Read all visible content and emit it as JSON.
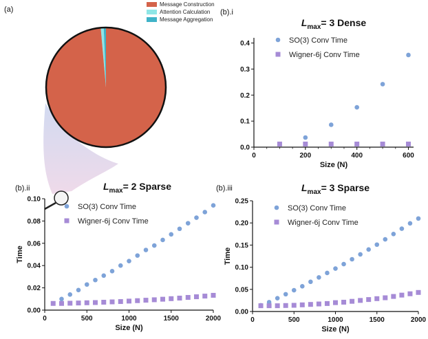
{
  "colors": {
    "so3": "#7ea3d8",
    "wigner": "#a68bd6",
    "message_construction": "#d4634a",
    "attention_calculation": "#8fe6e6",
    "message_aggregation": "#3fb3c8"
  },
  "chart_data": [
    {
      "id": "a",
      "type": "pie",
      "panel_label": "(a)",
      "slices": [
        {
          "name": "Message Construction",
          "value": 98.6,
          "color": "#d4634a"
        },
        {
          "name": "Attention Calculation",
          "value": 0.8,
          "color": "#8fe6e6"
        },
        {
          "name": "Message Aggregation",
          "value": 0.6,
          "color": "#3fb3c8"
        }
      ]
    },
    {
      "id": "bi",
      "type": "scatter",
      "panel_label": "(b).i",
      "title_main": "L",
      "title_sub": "max",
      "title_rest": "= 3 Dense",
      "xlabel": "Size (N)",
      "ylabel": "",
      "xlim": [
        0,
        620
      ],
      "ylim": [
        0,
        0.42
      ],
      "xticks": [
        0,
        200,
        400,
        600
      ],
      "yticks": [
        0.0,
        0.1,
        0.2,
        0.3,
        0.4
      ],
      "ytick_labels": [
        "0.0",
        "0.1",
        "0.2",
        "0.3",
        "0.4"
      ],
      "legend": [
        "SO(3) Conv Time",
        "Wigner-6j Conv Time"
      ],
      "series": [
        {
          "name": "SO(3) Conv Time",
          "marker": "circle",
          "x": [
            100,
            200,
            300,
            400,
            500,
            600
          ],
          "y": [
            0.012,
            0.037,
            0.086,
            0.153,
            0.242,
            0.354
          ]
        },
        {
          "name": "Wigner-6j Conv Time",
          "marker": "square",
          "x": [
            100,
            200,
            300,
            400,
            500,
            600
          ],
          "y": [
            0.012,
            0.012,
            0.012,
            0.012,
            0.012,
            0.012
          ]
        }
      ]
    },
    {
      "id": "bii",
      "type": "scatter",
      "panel_label": "(b).ii",
      "title_main": "L",
      "title_sub": "max",
      "title_rest": "= 2 Sparse",
      "xlabel": "Size (N)",
      "ylabel": "Time",
      "xlim": [
        0,
        2000
      ],
      "ylim": [
        0,
        0.1
      ],
      "xticks": [
        0,
        500,
        1000,
        1500,
        2000
      ],
      "yticks": [
        0.0,
        0.02,
        0.04,
        0.06,
        0.08,
        0.1
      ],
      "ytick_labels": [
        "0.00",
        "0.02",
        "0.04",
        "0.06",
        "0.08",
        "0.10"
      ],
      "legend": [
        "SO(3) Conv Time",
        "Wigner-6j Conv Time"
      ],
      "series": [
        {
          "name": "SO(3) Conv Time",
          "marker": "circle",
          "x": [
            100,
            200,
            300,
            400,
            500,
            600,
            700,
            800,
            900,
            1000,
            1100,
            1200,
            1300,
            1400,
            1500,
            1600,
            1700,
            1800,
            1900,
            2000
          ],
          "y": [
            0.006,
            0.01,
            0.014,
            0.018,
            0.023,
            0.027,
            0.031,
            0.035,
            0.04,
            0.044,
            0.049,
            0.054,
            0.058,
            0.063,
            0.068,
            0.073,
            0.078,
            0.083,
            0.088,
            0.094
          ]
        },
        {
          "name": "Wigner-6j Conv Time",
          "marker": "square",
          "x": [
            100,
            200,
            300,
            400,
            500,
            600,
            700,
            800,
            900,
            1000,
            1100,
            1200,
            1300,
            1400,
            1500,
            1600,
            1700,
            1800,
            1900,
            2000
          ],
          "y": [
            0.006,
            0.006,
            0.0062,
            0.0064,
            0.0066,
            0.0068,
            0.0071,
            0.0074,
            0.0077,
            0.0081,
            0.0085,
            0.0089,
            0.0093,
            0.0098,
            0.0103,
            0.0108,
            0.0114,
            0.012,
            0.0126,
            0.0133
          ]
        }
      ]
    },
    {
      "id": "biii",
      "type": "scatter",
      "panel_label": "(b).iii",
      "title_main": "L",
      "title_sub": "max",
      "title_rest": "= 3 Sparse",
      "xlabel": "Size (N)",
      "ylabel": "Time",
      "xlim": [
        0,
        2000
      ],
      "ylim": [
        0,
        0.25
      ],
      "xticks": [
        0,
        500,
        1000,
        1500,
        2000
      ],
      "yticks": [
        0.0,
        0.05,
        0.1,
        0.15,
        0.2,
        0.25
      ],
      "ytick_labels": [
        "0.00",
        "0.05",
        "0.10",
        "0.15",
        "0.20",
        "0.25"
      ],
      "legend": [
        "SO(3) Conv Time",
        "Wigner-6j Conv Time"
      ],
      "series": [
        {
          "name": "SO(3) Conv Time",
          "marker": "circle",
          "x": [
            100,
            200,
            300,
            400,
            500,
            600,
            700,
            800,
            900,
            1000,
            1100,
            1200,
            1300,
            1400,
            1500,
            1600,
            1700,
            1800,
            1900,
            2000
          ],
          "y": [
            0.014,
            0.021,
            0.03,
            0.039,
            0.048,
            0.057,
            0.067,
            0.077,
            0.087,
            0.097,
            0.107,
            0.118,
            0.129,
            0.14,
            0.151,
            0.163,
            0.175,
            0.187,
            0.199,
            0.21
          ]
        },
        {
          "name": "Wigner-6j Conv Time",
          "marker": "square",
          "x": [
            100,
            200,
            300,
            400,
            500,
            600,
            700,
            800,
            900,
            1000,
            1100,
            1200,
            1300,
            1400,
            1500,
            1600,
            1700,
            1800,
            1900,
            2000
          ],
          "y": [
            0.013,
            0.013,
            0.013,
            0.0135,
            0.014,
            0.015,
            0.016,
            0.017,
            0.018,
            0.02,
            0.021,
            0.023,
            0.025,
            0.027,
            0.029,
            0.031,
            0.034,
            0.037,
            0.04,
            0.043
          ]
        }
      ]
    }
  ]
}
